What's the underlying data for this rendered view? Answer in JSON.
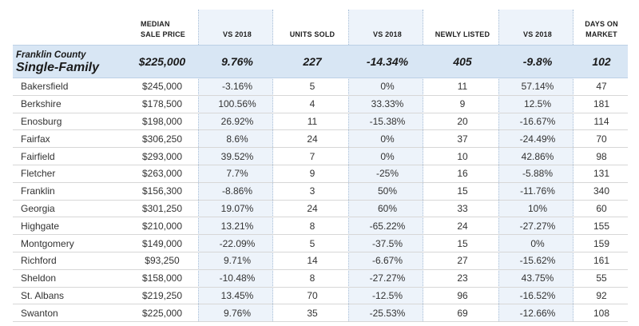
{
  "headers": {
    "median_line1": "MEDIAN",
    "median_line2": "SALE PRICE",
    "vs2018_a": "VS 2018",
    "units_sold": "UNITS SOLD",
    "vs2018_b": "VS 2018",
    "newly_listed": "NEWLY LISTED",
    "vs2018_c": "VS 2018",
    "days_line1": "DAYS ON",
    "days_line2": "MARKET"
  },
  "summary": {
    "county": "Franklin County",
    "type": "Single-Family",
    "median": "$225,000",
    "median_vs": "9.76%",
    "units": "227",
    "units_vs": "-14.34%",
    "listed": "405",
    "listed_vs": "-9.8%",
    "days": "102"
  },
  "rows": [
    {
      "town": "Bakersfield",
      "median": "$245,000",
      "median_vs": "-3.16%",
      "units": "5",
      "units_vs": "0%",
      "listed": "11",
      "listed_vs": "57.14%",
      "days": "47"
    },
    {
      "town": "Berkshire",
      "median": "$178,500",
      "median_vs": "100.56%",
      "units": "4",
      "units_vs": "33.33%",
      "listed": "9",
      "listed_vs": "12.5%",
      "days": "181"
    },
    {
      "town": "Enosburg",
      "median": "$198,000",
      "median_vs": "26.92%",
      "units": "11",
      "units_vs": "-15.38%",
      "listed": "20",
      "listed_vs": "-16.67%",
      "days": "114"
    },
    {
      "town": "Fairfax",
      "median": "$306,250",
      "median_vs": "8.6%",
      "units": "24",
      "units_vs": "0%",
      "listed": "37",
      "listed_vs": "-24.49%",
      "days": "70"
    },
    {
      "town": "Fairfield",
      "median": "$293,000",
      "median_vs": "39.52%",
      "units": "7",
      "units_vs": "0%",
      "listed": "10",
      "listed_vs": "42.86%",
      "days": "98"
    },
    {
      "town": "Fletcher",
      "median": "$263,000",
      "median_vs": "7.7%",
      "units": "9",
      "units_vs": "-25%",
      "listed": "16",
      "listed_vs": "-5.88%",
      "days": "131"
    },
    {
      "town": "Franklin",
      "median": "$156,300",
      "median_vs": "-8.86%",
      "units": "3",
      "units_vs": "50%",
      "listed": "15",
      "listed_vs": "-11.76%",
      "days": "340"
    },
    {
      "town": "Georgia",
      "median": "$301,250",
      "median_vs": "19.07%",
      "units": "24",
      "units_vs": "60%",
      "listed": "33",
      "listed_vs": "10%",
      "days": "60"
    },
    {
      "town": "Highgate",
      "median": "$210,000",
      "median_vs": "13.21%",
      "units": "8",
      "units_vs": "-65.22%",
      "listed": "24",
      "listed_vs": "-27.27%",
      "days": "155"
    },
    {
      "town": "Montgomery",
      "median": "$149,000",
      "median_vs": "-22.09%",
      "units": "5",
      "units_vs": "-37.5%",
      "listed": "15",
      "listed_vs": "0%",
      "days": "159"
    },
    {
      "town": "Richford",
      "median": "$93,250",
      "median_vs": "9.71%",
      "units": "14",
      "units_vs": "-6.67%",
      "listed": "27",
      "listed_vs": "-15.62%",
      "days": "161"
    },
    {
      "town": "Sheldon",
      "median": "$158,000",
      "median_vs": "-10.48%",
      "units": "8",
      "units_vs": "-27.27%",
      "listed": "23",
      "listed_vs": "43.75%",
      "days": "55"
    },
    {
      "town": "St. Albans",
      "median": "$219,250",
      "median_vs": "13.45%",
      "units": "70",
      "units_vs": "-12.5%",
      "listed": "96",
      "listed_vs": "-16.52%",
      "days": "92"
    },
    {
      "town": "Swanton",
      "median": "$225,000",
      "median_vs": "9.76%",
      "units": "35",
      "units_vs": "-25.53%",
      "listed": "69",
      "listed_vs": "-12.66%",
      "days": "108"
    }
  ],
  "colors": {
    "vs_column_shade": "#edf3fa",
    "summary_row": "#d8e6f4",
    "row_divider": "#d7d7d7"
  }
}
